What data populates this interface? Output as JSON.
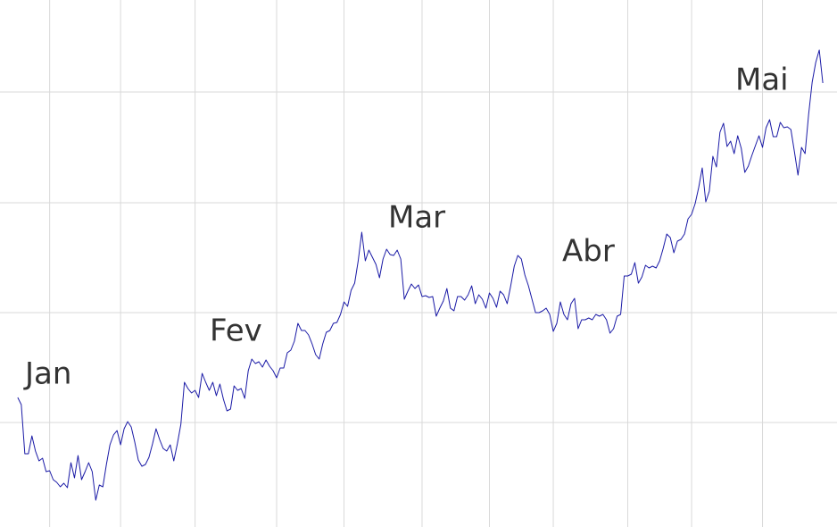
{
  "chart_data": {
    "type": "line",
    "annotations": [
      "Jan",
      "Fev",
      "Mar",
      "Abr",
      "Mai"
    ],
    "color": "#1a1aa6",
    "grid": true,
    "xlim": [
      -5,
      231
    ],
    "xticks": [
      9,
      29,
      50,
      73,
      92,
      114,
      133,
      151,
      172,
      190,
      210
    ],
    "ylim": [
      0,
      590
    ],
    "yticks": [
      117,
      240,
      363,
      487
    ],
    "values": [
      145,
      137,
      82,
      82,
      102,
      85,
      74,
      77,
      62,
      63,
      53,
      50,
      45,
      49,
      44,
      72,
      55,
      80,
      53,
      62,
      72,
      62,
      30,
      47,
      45,
      70,
      92,
      103,
      108,
      92,
      110,
      118,
      112,
      95,
      75,
      68,
      70,
      78,
      93,
      110,
      98,
      88,
      85,
      92,
      74,
      93,
      115,
      162,
      155,
      150,
      153,
      145,
      172,
      162,
      153,
      162,
      147,
      160,
      143,
      130,
      132,
      158,
      153,
      155,
      144,
      175,
      188,
      183,
      185,
      179,
      187,
      180,
      175,
      167,
      178,
      178,
      195,
      198,
      208,
      228,
      220,
      220,
      215,
      205,
      193,
      188,
      205,
      218,
      220,
      228,
      229,
      238,
      252,
      247,
      265,
      273,
      298,
      330,
      298,
      310,
      302,
      294,
      279,
      300,
      311,
      305,
      304,
      310,
      300,
      255,
      264,
      272,
      267,
      271,
      258,
      259,
      257,
      258,
      236,
      245,
      253,
      267,
      245,
      242,
      258,
      258,
      254,
      260,
      270,
      250,
      260,
      255,
      245,
      262,
      256,
      246,
      264,
      260,
      250,
      270,
      292,
      304,
      300,
      282,
      270,
      255,
      240,
      240,
      242,
      245,
      238,
      219,
      228,
      252,
      238,
      232,
      250,
      256,
      222,
      232,
      232,
      234,
      232,
      238,
      236,
      238,
      232,
      217,
      222,
      236,
      238,
      281,
      281,
      283,
      296,
      273,
      280,
      293,
      290,
      292,
      290,
      298,
      312,
      328,
      324,
      307,
      320,
      322,
      328,
      345,
      350,
      362,
      380,
      402,
      364,
      376,
      415,
      403,
      442,
      452,
      426,
      432,
      418,
      438,
      424,
      397,
      404,
      416,
      427,
      438,
      425,
      447,
      456,
      437,
      437,
      453,
      447,
      448,
      445,
      420,
      394,
      425,
      418,
      462,
      498,
      520,
      534,
      497
    ]
  }
}
